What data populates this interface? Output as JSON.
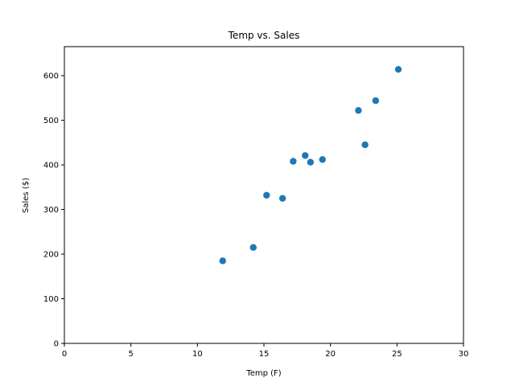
{
  "chart_data": {
    "type": "scatter",
    "title": "Temp vs. Sales",
    "xlabel": "Temp (F)",
    "ylabel": "Sales ($)",
    "xlim": [
      0,
      30
    ],
    "ylim": [
      0,
      665
    ],
    "xticks": [
      0,
      5,
      10,
      15,
      20,
      25,
      30
    ],
    "yticks": [
      0,
      100,
      200,
      300,
      400,
      500,
      600
    ],
    "grid": false,
    "legend": "none",
    "marker_color": "#1f77b4",
    "points": [
      {
        "x": 11.9,
        "y": 185
      },
      {
        "x": 14.2,
        "y": 215
      },
      {
        "x": 15.2,
        "y": 332
      },
      {
        "x": 16.4,
        "y": 325
      },
      {
        "x": 17.2,
        "y": 408
      },
      {
        "x": 18.1,
        "y": 421
      },
      {
        "x": 18.5,
        "y": 406
      },
      {
        "x": 19.4,
        "y": 412
      },
      {
        "x": 22.1,
        "y": 522
      },
      {
        "x": 22.6,
        "y": 445
      },
      {
        "x": 23.4,
        "y": 544
      },
      {
        "x": 25.1,
        "y": 614
      }
    ]
  }
}
